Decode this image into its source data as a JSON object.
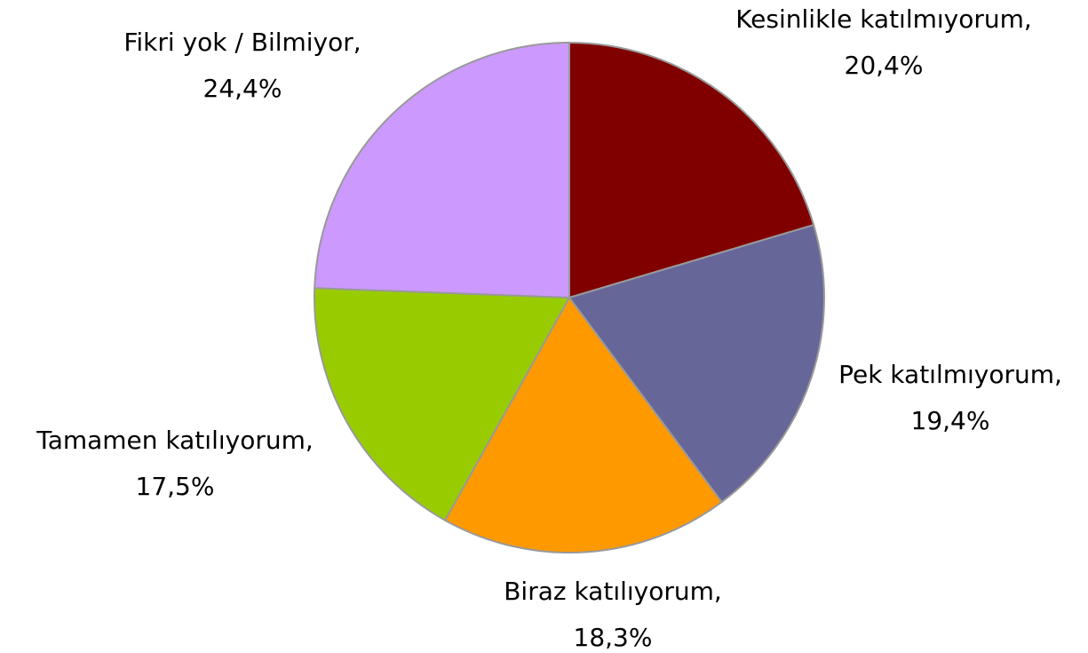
{
  "chart_data": {
    "type": "pie",
    "categories": [
      "Kesinlikle katılmıyorum,",
      "Pek katılmıyorum,",
      "Biraz katılıyorum,",
      "Tamamen katılıyorum,",
      "Fikri yok / Bilmiyor,"
    ],
    "values": [
      20.4,
      19.4,
      18.3,
      17.5,
      24.4
    ],
    "value_labels": [
      "20,4%",
      "19,4%",
      "18,3%",
      "17,5%",
      "24,4%"
    ],
    "colors": [
      "#800000",
      "#666699",
      "#ff9900",
      "#99cc00",
      "#cc99ff"
    ]
  }
}
